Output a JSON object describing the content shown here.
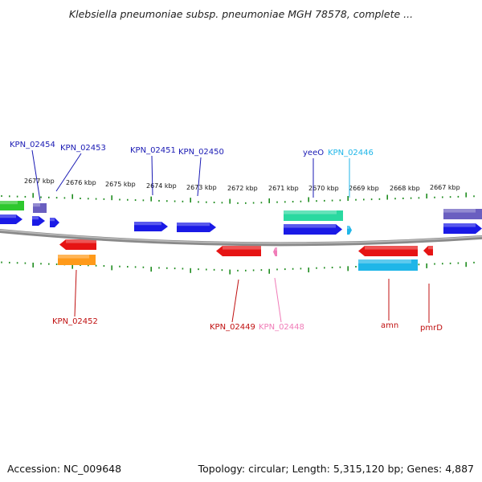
{
  "title": "Klebsiella pneumoniae subsp. pneumoniae MGH 78578, complete ...",
  "footer": {
    "accession": "Accession: NC_009648",
    "stats": "Topology: circular; Length: 5,315,120 bp; Genes: 4,887"
  },
  "colors": {
    "backbone": "#8a8a8a",
    "tick": "#1e8c1e",
    "forward_cds": "#1a1ae6",
    "reverse_cds": "#e61414",
    "rrna": "#2ad9a0",
    "misc": "#6a5fc0",
    "light_blue": "#1fb6e8",
    "orange": "#ff9a1a",
    "green": "#2ec82e",
    "pink": "#f07cb8"
  },
  "scale": {
    "unit": "kbp",
    "labels": [
      "2677 kbp",
      "2676 kbp",
      "2675 kbp",
      "2674 kbp",
      "2673 kbp",
      "2672 kbp",
      "2671 kbp",
      "2670 kbp",
      "2669 kbp",
      "2668 kbp",
      "2667 kbp"
    ]
  },
  "top_labels": [
    {
      "text": "KPN_02454",
      "color": "#1a1ab4"
    },
    {
      "text": "KPN_02453",
      "color": "#1a1ab4"
    },
    {
      "text": "KPN_02451",
      "color": "#1a1ab4"
    },
    {
      "text": "KPN_02450",
      "color": "#1a1ab4"
    },
    {
      "text": "yeeO",
      "color": "#1a1ab4"
    },
    {
      "text": "KPN_02446",
      "color": "#1fb6e8"
    }
  ],
  "bottom_labels": [
    {
      "text": "KPN_02452",
      "color": "#c01010"
    },
    {
      "text": "KPN_02449",
      "color": "#c01010"
    },
    {
      "text": "KPN_02448",
      "color": "#f07cb8"
    },
    {
      "text": "amn",
      "color": "#c01010"
    },
    {
      "text": "pmrD",
      "color": "#c01010"
    }
  ],
  "features": [
    {
      "name": "feature-green-top-left",
      "track": "fwd-outer",
      "color": "#2ec82e",
      "arrow": false
    },
    {
      "name": "feature-purple-small",
      "track": "fwd-outer",
      "color": "#6a5fc0",
      "arrow": false
    },
    {
      "name": "feature-blue-1",
      "track": "fwd-inner",
      "color": "#1a1ae6",
      "arrow": true
    },
    {
      "name": "feature-blue-2",
      "track": "fwd-inner",
      "color": "#1a1ae6",
      "arrow": true
    },
    {
      "name": "feature-blue-3",
      "track": "fwd-inner",
      "color": "#1a1ae6",
      "arrow": true
    },
    {
      "name": "feature-blue-4",
      "track": "fwd-inner",
      "color": "#1a1ae6",
      "arrow": true
    },
    {
      "name": "feature-blue-5",
      "track": "fwd-inner",
      "color": "#1a1ae6",
      "arrow": true
    },
    {
      "name": "feature-teal",
      "track": "fwd-outer",
      "color": "#2ad9a0",
      "arrow": false
    },
    {
      "name": "feature-blue-yeeo",
      "track": "fwd-inner",
      "color": "#1a1ae6",
      "arrow": true
    },
    {
      "name": "feature-lightblue-small",
      "track": "fwd-inner",
      "color": "#1fb6e8",
      "arrow": true
    },
    {
      "name": "feature-purple-right",
      "track": "fwd-outer",
      "color": "#6a5fc0",
      "arrow": false
    },
    {
      "name": "feature-blue-right",
      "track": "fwd-inner",
      "color": "#1a1ae6",
      "arrow": true
    },
    {
      "name": "feature-red-1",
      "track": "rev-inner",
      "color": "#e61414",
      "arrow": true
    },
    {
      "name": "feature-orange",
      "track": "rev-outer",
      "color": "#ff9a1a",
      "arrow": false
    },
    {
      "name": "feature-red-2",
      "track": "rev-inner",
      "color": "#e61414",
      "arrow": true
    },
    {
      "name": "feature-pink-small",
      "track": "rev-inner",
      "color": "#f07cb8",
      "arrow": true
    },
    {
      "name": "feature-red-amn",
      "track": "rev-inner",
      "color": "#e61414",
      "arrow": true
    },
    {
      "name": "feature-lightblue-bottom",
      "track": "rev-outer",
      "color": "#1fb6e8",
      "arrow": false
    },
    {
      "name": "feature-red-pmrd",
      "track": "rev-inner",
      "color": "#e61414",
      "arrow": true
    }
  ]
}
